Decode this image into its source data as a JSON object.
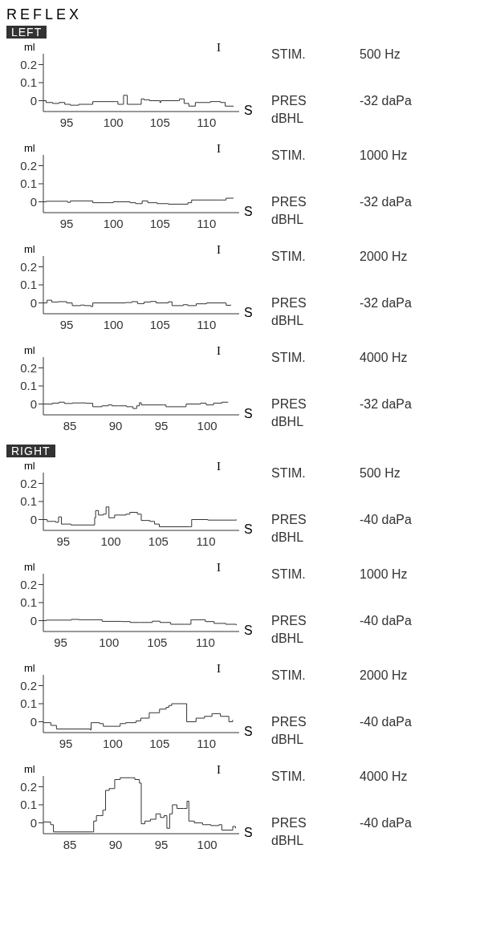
{
  "chart_data": [
    {
      "type": "step",
      "title": "REFLEX",
      "subtitle": "LEFT",
      "ylabel": "ml",
      "xlabel": "dBHL",
      "xlim": [
        92.5,
        113.5
      ],
      "xticks": [
        95,
        100,
        105,
        110
      ],
      "ylim": [
        -0.06,
        0.26
      ],
      "yticks": [
        0,
        0.1,
        0.2
      ],
      "annotations": [
        "I",
        "S",
        "STIM.",
        "500 Hz",
        "PRES",
        "-32 daPa"
      ],
      "series": [
        {
          "color": "#333333",
          "x": [
            92.5,
            92.8,
            93.5,
            94.2,
            94.8,
            95.4,
            96.3,
            97.4,
            97.8,
            100.2,
            100.5,
            101.0,
            101.1,
            101.5,
            102.8,
            103.0,
            103.3,
            103.9,
            104.9,
            105.0,
            105.1,
            107.0,
            107.1,
            107.6,
            108.1,
            108.8,
            110.4,
            111.5,
            112.0,
            112.9
          ],
          "values": [
            0,
            -0.01,
            -0.015,
            -0.01,
            -0.02,
            -0.025,
            -0.02,
            -0.02,
            -0.005,
            -0.005,
            -0.02,
            -0.02,
            0.03,
            -0.02,
            -0.02,
            0.01,
            0.005,
            0,
            0,
            -0.01,
            0,
            0,
            0.01,
            -0.015,
            -0.03,
            -0.01,
            -0.005,
            -0.01,
            -0.03,
            -0.03
          ]
        }
      ]
    },
    {
      "type": "step",
      "ylabel": "ml",
      "xlabel": "dBHL",
      "xlim": [
        92.5,
        113.5
      ],
      "xticks": [
        95,
        100,
        105,
        110
      ],
      "ylim": [
        -0.06,
        0.26
      ],
      "yticks": [
        0,
        0.1,
        0.2
      ],
      "annotations": [
        "I",
        "S",
        "STIM.",
        "1000 Hz",
        "PRES",
        "-32 daPa"
      ],
      "series": [
        {
          "color": "#333333",
          "x": [
            92.5,
            92.8,
            95.1,
            95.4,
            96.9,
            97.8,
            99.4,
            100.0,
            101.8,
            102.4,
            103.1,
            103.7,
            104.7,
            105.9,
            108.0,
            108.4,
            111.2,
            112.1,
            112.9
          ],
          "values": [
            0,
            0.003,
            -0.003,
            0.005,
            0.005,
            -0.005,
            -0.005,
            0,
            -0.005,
            -0.01,
            0.005,
            -0.005,
            -0.01,
            -0.013,
            -0.005,
            0.01,
            0.01,
            0.02,
            0.02
          ]
        }
      ]
    },
    {
      "type": "step",
      "ylabel": "ml",
      "xlabel": "dBHL",
      "xlim": [
        92.5,
        113.5
      ],
      "xticks": [
        95,
        100,
        105,
        110
      ],
      "ylim": [
        -0.06,
        0.26
      ],
      "yticks": [
        0,
        0.1,
        0.2
      ],
      "annotations": [
        "I",
        "S",
        "STIM.",
        "2000 Hz",
        "PRES",
        "-32 daPa"
      ],
      "series": [
        {
          "color": "#333333",
          "x": [
            92.5,
            92.9,
            93.4,
            94.1,
            95.0,
            95.6,
            96.5,
            96.9,
            97.6,
            97.8,
            101.3,
            102.0,
            102.6,
            103.3,
            104.0,
            104.6,
            105.9,
            106.3,
            107.5,
            108.0,
            108.9,
            110.0,
            112.1,
            112.6
          ],
          "values": [
            0,
            0.015,
            0.005,
            0.007,
            0,
            -0.015,
            -0.012,
            -0.015,
            -0.02,
            0,
            0.002,
            0.007,
            -0.004,
            0.005,
            0.008,
            0,
            0.006,
            -0.015,
            -0.01,
            -0.015,
            -0.005,
            0,
            -0.013,
            -0.01
          ]
        }
      ]
    },
    {
      "type": "step",
      "ylabel": "ml",
      "xlabel": "dBHL",
      "xlim": [
        82.1,
        103.5
      ],
      "xticks": [
        85,
        90,
        95,
        100
      ],
      "ylim": [
        -0.06,
        0.26
      ],
      "yticks": [
        0,
        0.1,
        0.2
      ],
      "annotations": [
        "I",
        "S",
        "STIM.",
        "4000 Hz",
        "PRES",
        "-32 daPa"
      ],
      "series": [
        {
          "color": "#333333",
          "x": [
            82.1,
            83.1,
            83.8,
            84.4,
            85.3,
            86.8,
            87.5,
            88.5,
            89.2,
            89.6,
            90.3,
            91.2,
            91.9,
            92.3,
            92.6,
            92.8,
            95.2,
            95.5,
            97.7,
            99.3,
            99.9,
            100.7,
            101.6,
            102.3
          ],
          "values": [
            0,
            0.005,
            0.01,
            0.003,
            0.006,
            0.004,
            -0.015,
            -0.01,
            -0.005,
            -0.01,
            -0.01,
            -0.015,
            -0.025,
            -0.01,
            0.007,
            -0.005,
            -0.005,
            -0.015,
            0,
            0.005,
            -0.005,
            0.005,
            0.01,
            0.01
          ]
        }
      ]
    },
    {
      "type": "step",
      "subtitle": "RIGHT",
      "ylabel": "ml",
      "xlabel": "dBHL",
      "xlim": [
        92.9,
        113.5
      ],
      "xticks": [
        95,
        100,
        105,
        110
      ],
      "ylim": [
        -0.06,
        0.26
      ],
      "yticks": [
        0,
        0.1,
        0.2
      ],
      "annotations": [
        "I",
        "S",
        "STIM.",
        "500 Hz",
        "PRES",
        "-40 daPa"
      ],
      "series": [
        {
          "color": "#333333",
          "x": [
            92.9,
            93.3,
            94.2,
            94.5,
            94.8,
            95.8,
            98.0,
            98.3,
            98.4,
            98.7,
            99.2,
            99.5,
            99.8,
            100.4,
            101.6,
            102.0,
            102.8,
            103.2,
            104.1,
            104.6,
            105.1,
            108.3,
            108.5,
            110.2,
            112.9,
            113.2
          ],
          "values": [
            0,
            -0.01,
            -0.015,
            0.015,
            -0.025,
            -0.03,
            -0.03,
            0.01,
            0.05,
            0.025,
            0.03,
            0.07,
            0.01,
            0.025,
            0.03,
            0.04,
            0.03,
            -0.005,
            -0.01,
            -0.025,
            -0.04,
            -0.04,
            0,
            -0.003,
            -0.003,
            0
          ]
        }
      ]
    },
    {
      "type": "step",
      "ylabel": "ml",
      "xlabel": "dBHL",
      "xlim": [
        93.2,
        113.5
      ],
      "xticks": [
        95,
        100,
        105,
        110
      ],
      "ylim": [
        -0.06,
        0.26
      ],
      "yticks": [
        0,
        0.1,
        0.2
      ],
      "annotations": [
        "I",
        "S",
        "STIM.",
        "1000 Hz",
        "PRES",
        "-40 daPa"
      ],
      "series": [
        {
          "color": "#333333",
          "x": [
            93.2,
            93.5,
            96.1,
            96.9,
            99.3,
            101.3,
            102.2,
            103.3,
            104.5,
            105.3,
            106.4,
            107.9,
            108.5,
            110.0,
            110.9,
            112.1,
            113.2
          ],
          "values": [
            0,
            0.003,
            0.007,
            0.005,
            -0.004,
            -0.005,
            -0.01,
            -0.01,
            -0.003,
            -0.01,
            -0.02,
            -0.02,
            0.005,
            -0.005,
            -0.015,
            -0.02,
            -0.025
          ]
        }
      ]
    },
    {
      "type": "step",
      "ylabel": "ml",
      "xlabel": "dBHL",
      "xlim": [
        92.6,
        113.5
      ],
      "xticks": [
        95,
        100,
        105,
        110
      ],
      "ylim": [
        -0.06,
        0.26
      ],
      "yticks": [
        0,
        0.1,
        0.2
      ],
      "annotations": [
        "I",
        "S",
        "STIM.",
        "2000 Hz",
        "PRES",
        "-40 daPa"
      ],
      "series": [
        {
          "color": "#333333",
          "x": [
            92.6,
            93.4,
            94.0,
            97.6,
            97.7,
            98.6,
            99.0,
            100.8,
            101.4,
            102.5,
            103.0,
            103.9,
            105.0,
            105.7,
            106.0,
            106.3,
            107.4,
            107.9,
            108.9,
            109.8,
            110.6,
            111.5,
            112.4,
            112.8
          ],
          "values": [
            -0.005,
            -0.02,
            -0.04,
            -0.045,
            -0.005,
            -0.01,
            -0.025,
            -0.01,
            -0.005,
            0.005,
            0.02,
            0.05,
            0.07,
            0.08,
            0.09,
            0.1,
            0.1,
            0,
            0.02,
            0.03,
            0.045,
            0.03,
            0,
            0.01
          ]
        }
      ]
    },
    {
      "type": "step",
      "ylabel": "ml",
      "xlabel": "dBHL",
      "xlim": [
        82.1,
        103.5
      ],
      "xticks": [
        85,
        90,
        95,
        100
      ],
      "ylim": [
        -0.06,
        0.26
      ],
      "yticks": [
        0,
        0.1,
        0.2
      ],
      "annotations": [
        "I",
        "S",
        "STIM.",
        "4000 Hz",
        "PRES",
        "-40 daPa"
      ],
      "series": [
        {
          "color": "#333333",
          "x": [
            82.1,
            82.9,
            83.2,
            87.4,
            87.6,
            87.9,
            88.3,
            88.6,
            88.9,
            89.3,
            89.9,
            90.5,
            91.7,
            92.1,
            92.6,
            92.8,
            93.2,
            93.8,
            94.4,
            94.9,
            95.3,
            95.6,
            95.9,
            96.2,
            96.7,
            97.4,
            97.8,
            98.0,
            98.6,
            99.5,
            100.4,
            101.3,
            101.6,
            102.8,
            103.1
          ],
          "values": [
            0.005,
            -0.01,
            -0.05,
            -0.05,
            0.01,
            0.04,
            0.04,
            0.07,
            0.18,
            0.19,
            0.24,
            0.25,
            0.25,
            0.24,
            0.22,
            -0.005,
            0.01,
            0.02,
            0.05,
            0.03,
            0.04,
            -0.03,
            0.05,
            0.1,
            0.08,
            0.08,
            0.12,
            0.01,
            0,
            -0.01,
            -0.015,
            -0.01,
            -0.04,
            -0.02,
            -0.03
          ]
        }
      ]
    }
  ]
}
